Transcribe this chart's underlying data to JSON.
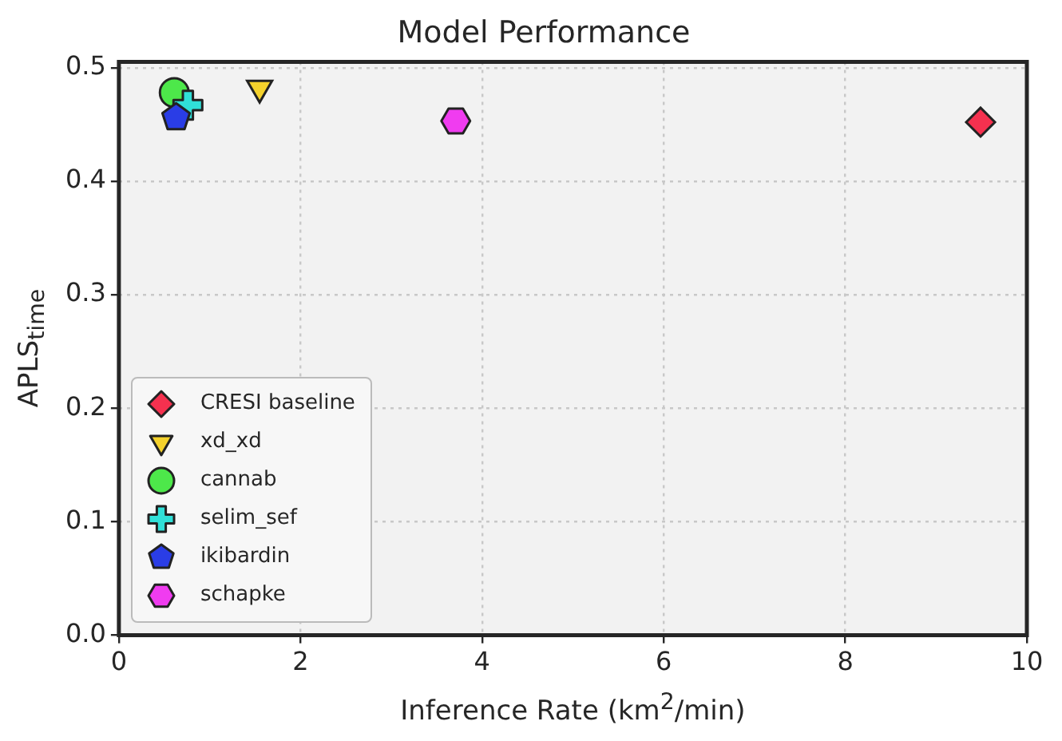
{
  "chart_data": {
    "type": "scatter",
    "title": "Model Performance",
    "xlabel": "Inference Rate (km$^{2}$/min)",
    "ylabel": "APLS$_{time}$",
    "xlim": [
      0,
      10
    ],
    "xticks": [
      0,
      2,
      4,
      6,
      8,
      10
    ],
    "ylim": [
      0,
      0.505
    ],
    "yticks": [
      {
        "value": 0,
        "label": "0.0"
      },
      0.1,
      0.2,
      0.3,
      0.4,
      0.5
    ],
    "grid": true,
    "legend": "bottom left",
    "series": [
      {
        "name": "CRESI baseline",
        "color": "#f5314f",
        "marker": "diamond",
        "x": [
          9.49
        ],
        "values": [
          0.452
        ]
      },
      {
        "name": "xd_xd",
        "color": "#f5d22c",
        "marker": "triangle_down",
        "x": [
          1.55
        ],
        "values": [
          0.482
        ]
      },
      {
        "name": "cannab",
        "color": "#4de84a",
        "marker": "circle",
        "x": [
          0.61
        ],
        "values": [
          0.478
        ]
      },
      {
        "name": "selim_sef",
        "color": "#30e0d8",
        "marker": "plus",
        "x": [
          0.76
        ],
        "values": [
          0.467
        ]
      },
      {
        "name": "ikibardin",
        "color": "#2a3de6",
        "x": [
          0.63
        ],
        "values": [
          0.456
        ]
      },
      {
        "name": "schapke",
        "color": "#f03cf0",
        "x": [
          3.71
        ],
        "values": [
          0.453
        ]
      }
    ]
  }
}
